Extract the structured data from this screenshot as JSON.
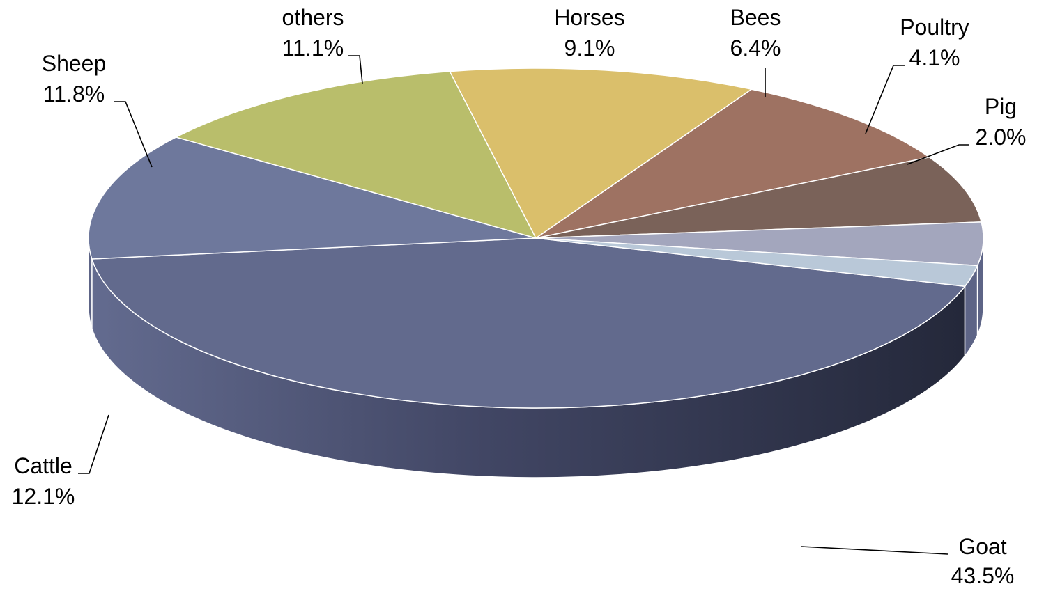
{
  "chart_data": {
    "type": "pie",
    "title": "",
    "legend": "none",
    "slices": [
      {
        "name": "Goat",
        "label": "Goat",
        "value": 43.5,
        "value_label": "43.5%",
        "color": "#626a8d"
      },
      {
        "name": "Cattle",
        "label": "Cattle",
        "value": 12.1,
        "value_label": "12.1%",
        "color": "#6e789c"
      },
      {
        "name": "Sheep",
        "label": "Sheep",
        "value": 11.8,
        "value_label": "11.8%",
        "color": "#b9be6b"
      },
      {
        "name": "others",
        "label": "others",
        "value": 11.1,
        "value_label": "11.1%",
        "color": "#dabf6b"
      },
      {
        "name": "Horses",
        "label": "Horses",
        "value": 9.1,
        "value_label": "9.1%",
        "color": "#9e7262"
      },
      {
        "name": "Bees",
        "label": "Bees",
        "value": 6.4,
        "value_label": "6.4%",
        "color": "#7a6259"
      },
      {
        "name": "Poultry",
        "label": "Poultry",
        "value": 4.1,
        "value_label": "4.1%",
        "color": "#a3a6bd"
      },
      {
        "name": "Pig",
        "label": "Pig",
        "value": 2.0,
        "value_label": "2.0%",
        "color": "#b9c8d8"
      }
    ]
  }
}
